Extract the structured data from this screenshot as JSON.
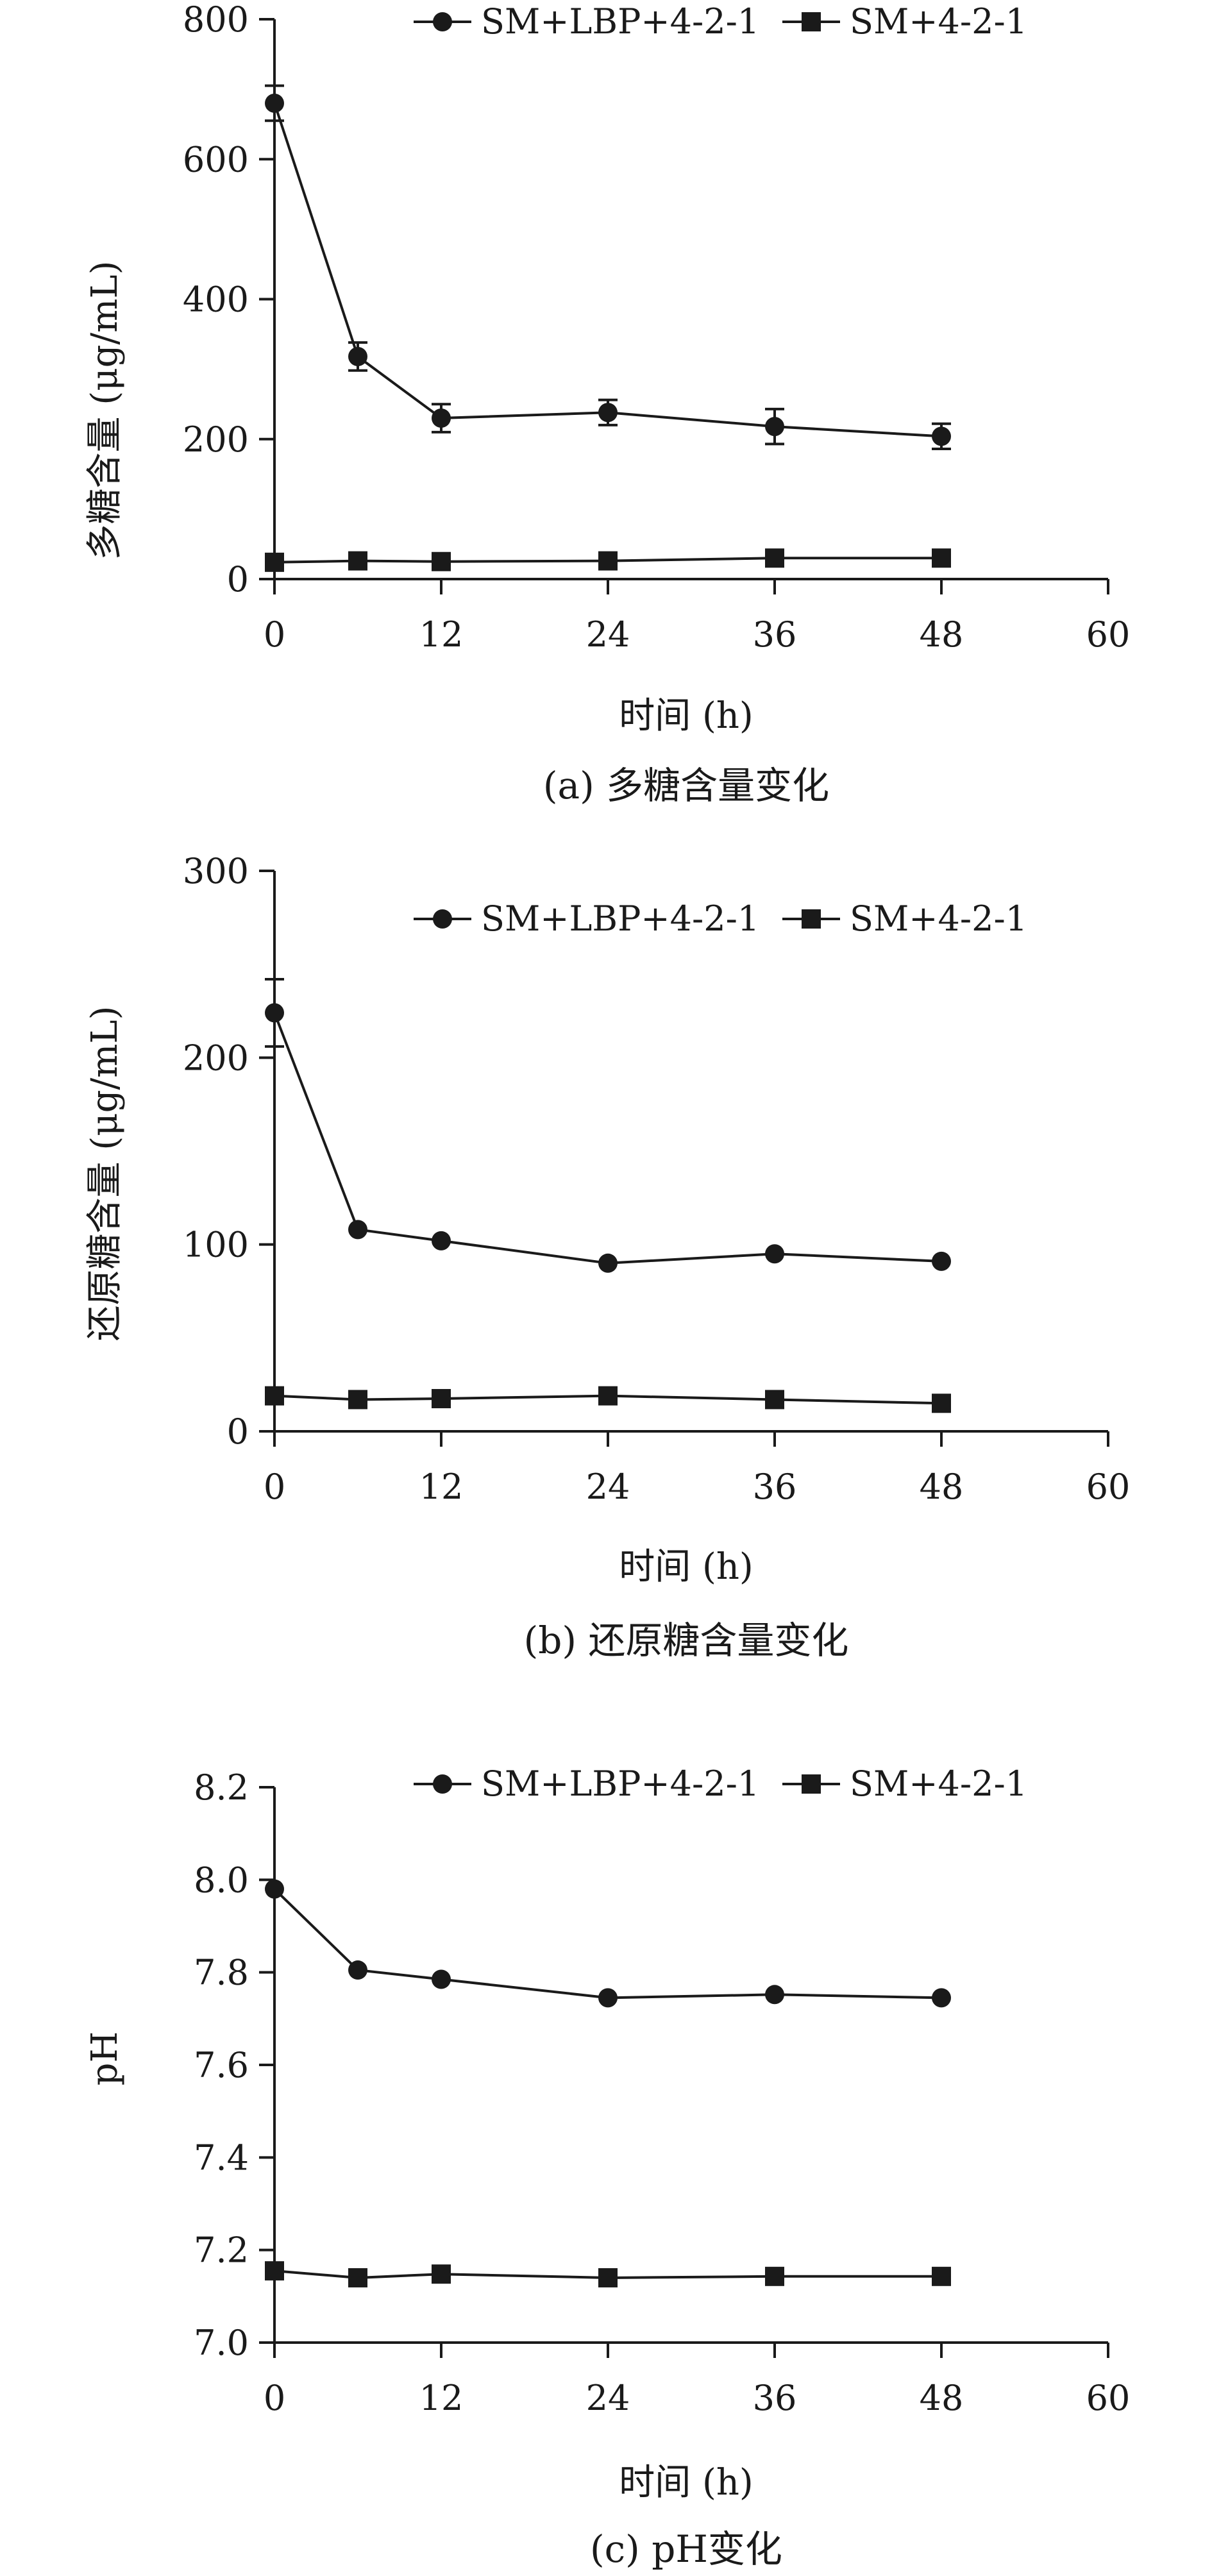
{
  "chart_data": [
    {
      "type": "line",
      "caption": "(a) 多糖含量变化",
      "xlabel": "时间 (h)",
      "ylabel": "多糖含量 (μg/mL)",
      "xlim": [
        0,
        60
      ],
      "ylim": [
        0,
        800
      ],
      "xticks": [
        "0",
        "12",
        "24",
        "36",
        "48",
        "60"
      ],
      "yticks": [
        "0",
        "200",
        "400",
        "600",
        "800"
      ],
      "legend_position": "top",
      "x": [
        0,
        6,
        12,
        24,
        36,
        48
      ],
      "series": [
        {
          "name": "SM+LBP+4-2-1",
          "marker": "circle",
          "values": [
            680,
            318,
            230,
            238,
            218,
            204
          ],
          "errors": [
            25,
            20,
            20,
            18,
            25,
            18
          ]
        },
        {
          "name": "SM+4-2-1",
          "marker": "square",
          "values": [
            24,
            26,
            25,
            26,
            30,
            30
          ],
          "errors": [
            0,
            0,
            0,
            0,
            0,
            0
          ]
        }
      ]
    },
    {
      "type": "line",
      "caption": "(b) 还原糖含量变化",
      "xlabel": "时间 (h)",
      "ylabel": "还原糖含量 (μg/mL)",
      "xlim": [
        0,
        60
      ],
      "ylim": [
        0,
        300
      ],
      "xticks": [
        "0",
        "12",
        "24",
        "36",
        "48",
        "60"
      ],
      "yticks": [
        "0",
        "100",
        "200",
        "300"
      ],
      "legend_position": "top",
      "x": [
        0,
        6,
        12,
        24,
        36,
        48
      ],
      "series": [
        {
          "name": "SM+LBP+4-2-1",
          "marker": "circle",
          "values": [
            224,
            108,
            102,
            90,
            95,
            91
          ],
          "errors": [
            18,
            0,
            0,
            0,
            0,
            0
          ]
        },
        {
          "name": "SM+4-2-1",
          "marker": "square",
          "values": [
            19,
            17,
            17.5,
            19,
            17,
            15
          ],
          "errors": [
            0,
            0,
            0,
            0,
            0,
            0
          ]
        }
      ]
    },
    {
      "type": "line",
      "caption": "(c) pH变化",
      "xlabel": "时间 (h)",
      "ylabel": "pH",
      "xlim": [
        0,
        60
      ],
      "ylim": [
        7.0,
        8.2
      ],
      "xticks": [
        "0",
        "12",
        "24",
        "36",
        "48",
        "60"
      ],
      "yticks": [
        "7.0",
        "7.2",
        "7.4",
        "7.6",
        "7.8",
        "8.0",
        "8.2"
      ],
      "legend_position": "top",
      "x": [
        0,
        6,
        12,
        24,
        36,
        48
      ],
      "series": [
        {
          "name": "SM+LBP+4-2-1",
          "marker": "circle",
          "values": [
            7.98,
            7.805,
            7.785,
            7.745,
            7.752,
            7.745
          ],
          "errors": [
            0,
            0,
            0,
            0,
            0,
            0
          ]
        },
        {
          "name": "SM+4-2-1",
          "marker": "square",
          "values": [
            7.155,
            7.14,
            7.148,
            7.14,
            7.143,
            7.143
          ],
          "errors": [
            0,
            0,
            0,
            0,
            0,
            0
          ]
        }
      ]
    }
  ]
}
